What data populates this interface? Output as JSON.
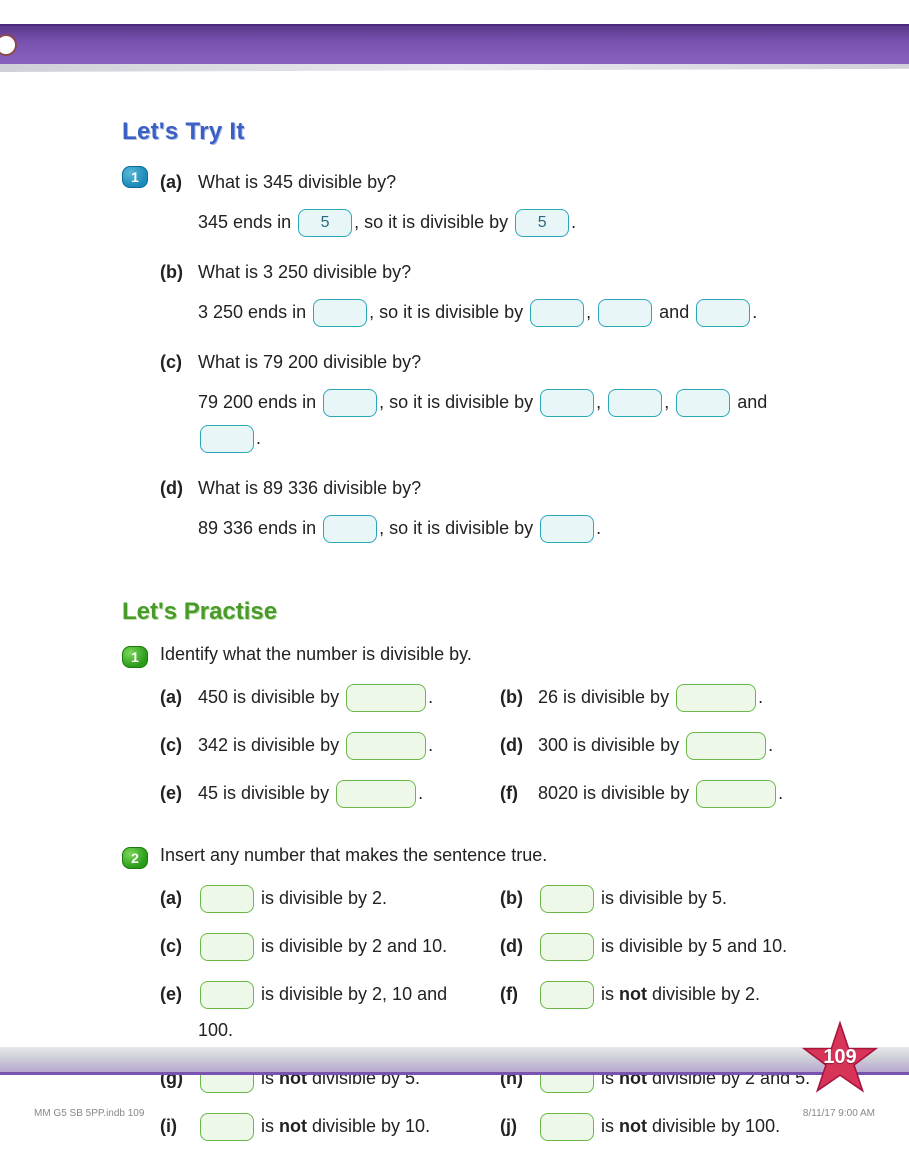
{
  "colors": {
    "banner_purple": "#7a52b0",
    "try_heading": "#3a60c4",
    "practise_heading": "#4a9a2a",
    "blank_teal_border": "#2aa8b8",
    "blank_teal_fill": "#e8f6f8",
    "blank_green_border": "#6ab84a",
    "blank_green_fill": "#eef8e8",
    "badge_blue": "#1a8ab8",
    "badge_green": "#2a9a1a",
    "star_fill": "#d8345a",
    "star_stroke": "#a8143a"
  },
  "try_heading": "Let's Try It",
  "practise_heading": "Let's Practise",
  "try": {
    "badge": "1",
    "a": {
      "label": "(a)",
      "q": "What is 345 divisible by?",
      "l1_prefix": "345 ends in ",
      "b1": "5",
      "mid": ", so it is divisible by ",
      "b2": "5",
      "suffix": "."
    },
    "b": {
      "label": "(b)",
      "q": "What is 3 250 divisible by?",
      "l1_prefix": "3 250 ends in ",
      "mid": ", so it is divisible by ",
      "sep": ", ",
      "and": " and ",
      "suffix": "."
    },
    "c": {
      "label": "(c)",
      "q": "What is 79 200 divisible by?",
      "l1_prefix": "79 200 ends in ",
      "mid": ", so it is divisible by ",
      "sep": ", ",
      "and": " and",
      "suffix": "."
    },
    "d": {
      "label": "(d)",
      "q": "What is 89 336 divisible by?",
      "l1_prefix": "89 336 ends in ",
      "mid": ", so it is divisible by ",
      "suffix": "."
    }
  },
  "p1": {
    "badge": "1",
    "prompt": "Identify what the number is divisible by.",
    "items": [
      {
        "label": "(a)",
        "pre": "450 is divisible by "
      },
      {
        "label": "(b)",
        "pre": "26 is divisible by "
      },
      {
        "label": "(c)",
        "pre": "342 is divisible by "
      },
      {
        "label": "(d)",
        "pre": "300 is divisible by "
      },
      {
        "label": "(e)",
        "pre": "45 is divisible by "
      },
      {
        "label": "(f)",
        "pre": "8020 is divisible by "
      }
    ]
  },
  "p2": {
    "badge": "2",
    "prompt": "Insert any number that makes the sentence true.",
    "items": [
      {
        "label": "(a)",
        "post": " is divisible by 2."
      },
      {
        "label": "(b)",
        "post": " is divisible by 5."
      },
      {
        "label": "(c)",
        "post": " is divisible by 2 and 10."
      },
      {
        "label": "(d)",
        "post": " is divisible by 5 and 10."
      },
      {
        "label": "(e)",
        "post": " is divisible by 2, 10 and 100."
      },
      {
        "label": "(f)",
        "post_pre": " is ",
        "bold": "not",
        "post_suf": " divisible by 2."
      },
      {
        "label": "(g)",
        "post_pre": " is ",
        "bold": "not",
        "post_suf": " divisible by 5."
      },
      {
        "label": "(h)",
        "post_pre": " is ",
        "bold": "not",
        "post_suf": " divisible by 2 and 5."
      },
      {
        "label": "(i)",
        "post_pre": " is ",
        "bold": "not",
        "post_suf": " divisible by 10."
      },
      {
        "label": "(j)",
        "post_pre": " is ",
        "bold": "not",
        "post_suf": " divisible by 100."
      }
    ]
  },
  "page_number": "109",
  "footer_left": "MM G5 SB 5PP.indb   109",
  "footer_right": "8/11/17   9:00 AM"
}
